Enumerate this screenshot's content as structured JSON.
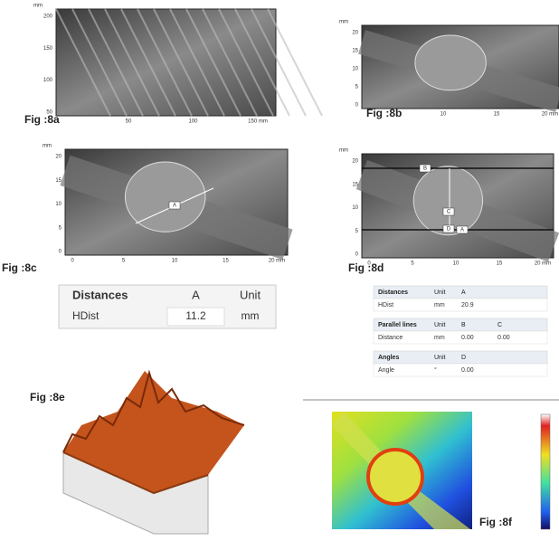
{
  "panels": [
    {
      "label": "Fig :8a",
      "unit": "mm",
      "yticks": [
        "200",
        "150",
        "100",
        "50"
      ],
      "xticks": [
        "50",
        "100",
        "150 mm"
      ]
    },
    {
      "label": "Fig :8b",
      "unit": "mm",
      "yticks": [
        "20",
        "15",
        "10",
        "5",
        "0"
      ],
      "xticks": [
        "10",
        "15",
        "20 mm"
      ]
    },
    {
      "label": "Fig :8c",
      "unit": "mm",
      "yticks": [
        "20",
        "15",
        "10",
        "5",
        "0"
      ],
      "xticks": [
        "0",
        "5",
        "10",
        "15",
        "20 mm"
      ]
    },
    {
      "label": "Fig :8d",
      "unit": "mm",
      "yticks": [
        "20",
        "15",
        "10",
        "5",
        "0"
      ],
      "xticks": [
        "0",
        "5",
        "10",
        "15",
        "20 mm"
      ]
    }
  ],
  "markers_c": [
    "A"
  ],
  "markers_d": [
    "B",
    "C",
    "D",
    "A"
  ],
  "table_c": {
    "header": [
      "Distances",
      "A",
      "Unit"
    ],
    "rows": [
      [
        "HDist",
        "11.2",
        "mm"
      ]
    ]
  },
  "table_d": {
    "sections": [
      {
        "header": [
          "Distances",
          "Unit",
          "A"
        ],
        "rows": [
          [
            "HDist",
            "mm",
            "20.9"
          ]
        ]
      },
      {
        "header": [
          "Parallel lines",
          "Unit",
          "B",
          "C"
        ],
        "rows": [
          [
            "Distance",
            "mm",
            "0.00",
            "0.00"
          ]
        ]
      },
      {
        "header": [
          "Angles",
          "Unit",
          "D"
        ],
        "rows": [
          [
            "Angle",
            "°",
            "0.00"
          ]
        ]
      }
    ]
  },
  "fig_e": "Fig :8e",
  "fig_f": "Fig :8f"
}
